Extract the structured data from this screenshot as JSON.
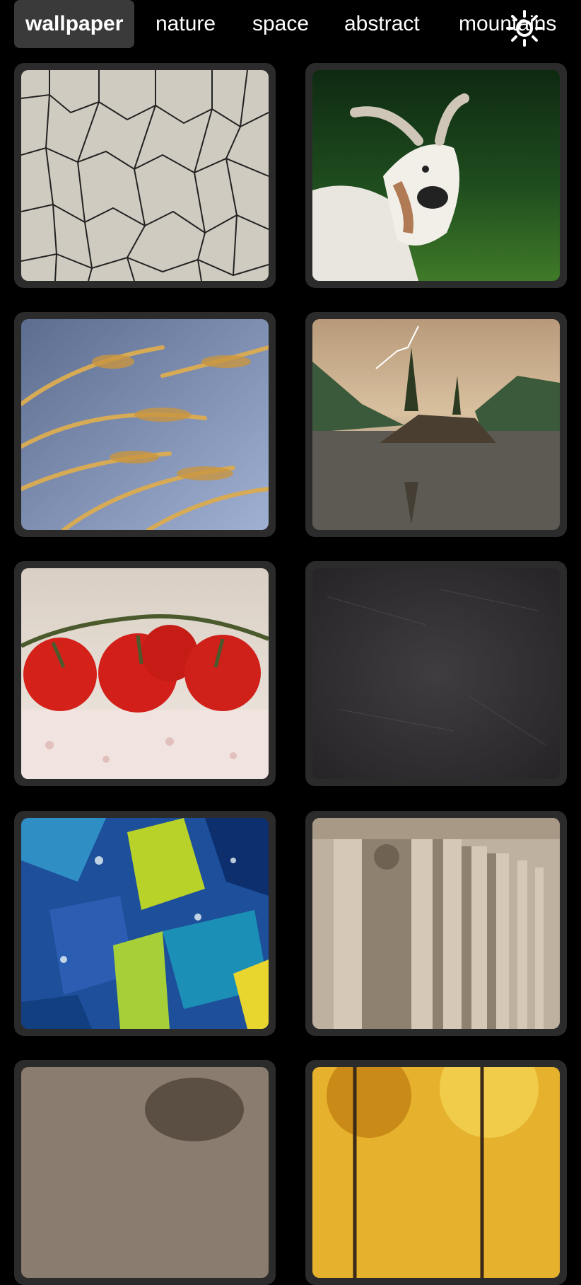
{
  "tabs": [
    {
      "label": "wallpaper",
      "active": true
    },
    {
      "label": "nature",
      "active": false
    },
    {
      "label": "space",
      "active": false
    },
    {
      "label": "abstract",
      "active": false
    },
    {
      "label": "mountains",
      "active": false
    }
  ],
  "theme_toggle": {
    "icon": "sun-icon"
  },
  "wallpapers": [
    {
      "subject": "cracked-earth"
    },
    {
      "subject": "goat"
    },
    {
      "subject": "wheat"
    },
    {
      "subject": "lake-lightning"
    },
    {
      "subject": "tomatoes"
    },
    {
      "subject": "chalkboard"
    },
    {
      "subject": "abstract-paint"
    },
    {
      "subject": "colonnade"
    },
    {
      "subject": "animal"
    },
    {
      "subject": "autumn-forest"
    }
  ],
  "colors": {
    "background": "#000000",
    "card": "#2b2b2b",
    "active_tab": "#3a3a3a",
    "text": "#ffffff"
  }
}
